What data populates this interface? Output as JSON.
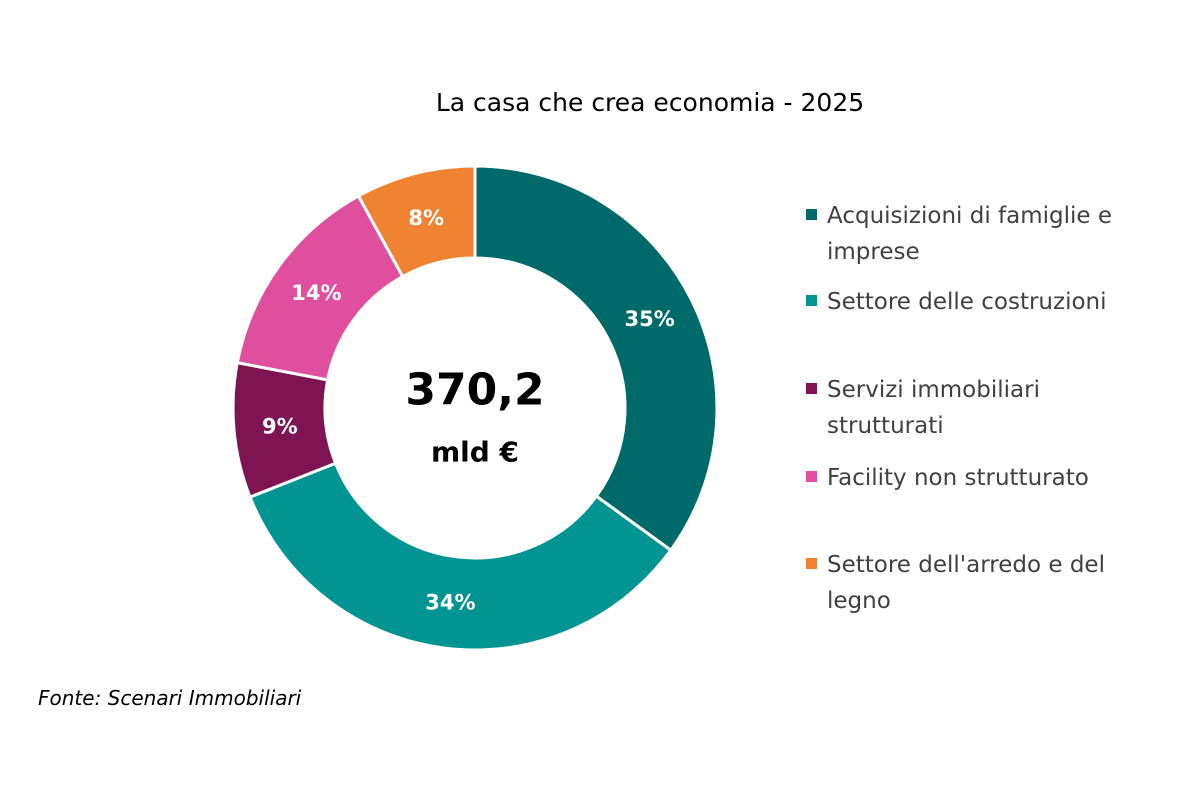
{
  "chart_data": {
    "type": "pie",
    "title": "La casa che crea economia - 2025",
    "center_value": "370,2",
    "center_unit": "mld €",
    "slices": [
      {
        "label": "Acquisizioni di famiglie e imprese",
        "value": 35,
        "display": "35%",
        "color": "#00696a"
      },
      {
        "label": "Settore delle costruzioni",
        "value": 34,
        "display": "34%",
        "color": "#019493"
      },
      {
        "label": "Servizi immobiliari strutturati",
        "value": 9,
        "display": "9%",
        "color": "#7e1451"
      },
      {
        "label": "Facility non strutturato",
        "value": 14,
        "display": "14%",
        "color": "#e04f9d"
      },
      {
        "label": "Settore dell'arredo e del legno",
        "value": 8,
        "display": "8%",
        "color": "#ef8332"
      }
    ],
    "legend_position": "right",
    "source": "Fonte: Scenari Immobiliari"
  }
}
